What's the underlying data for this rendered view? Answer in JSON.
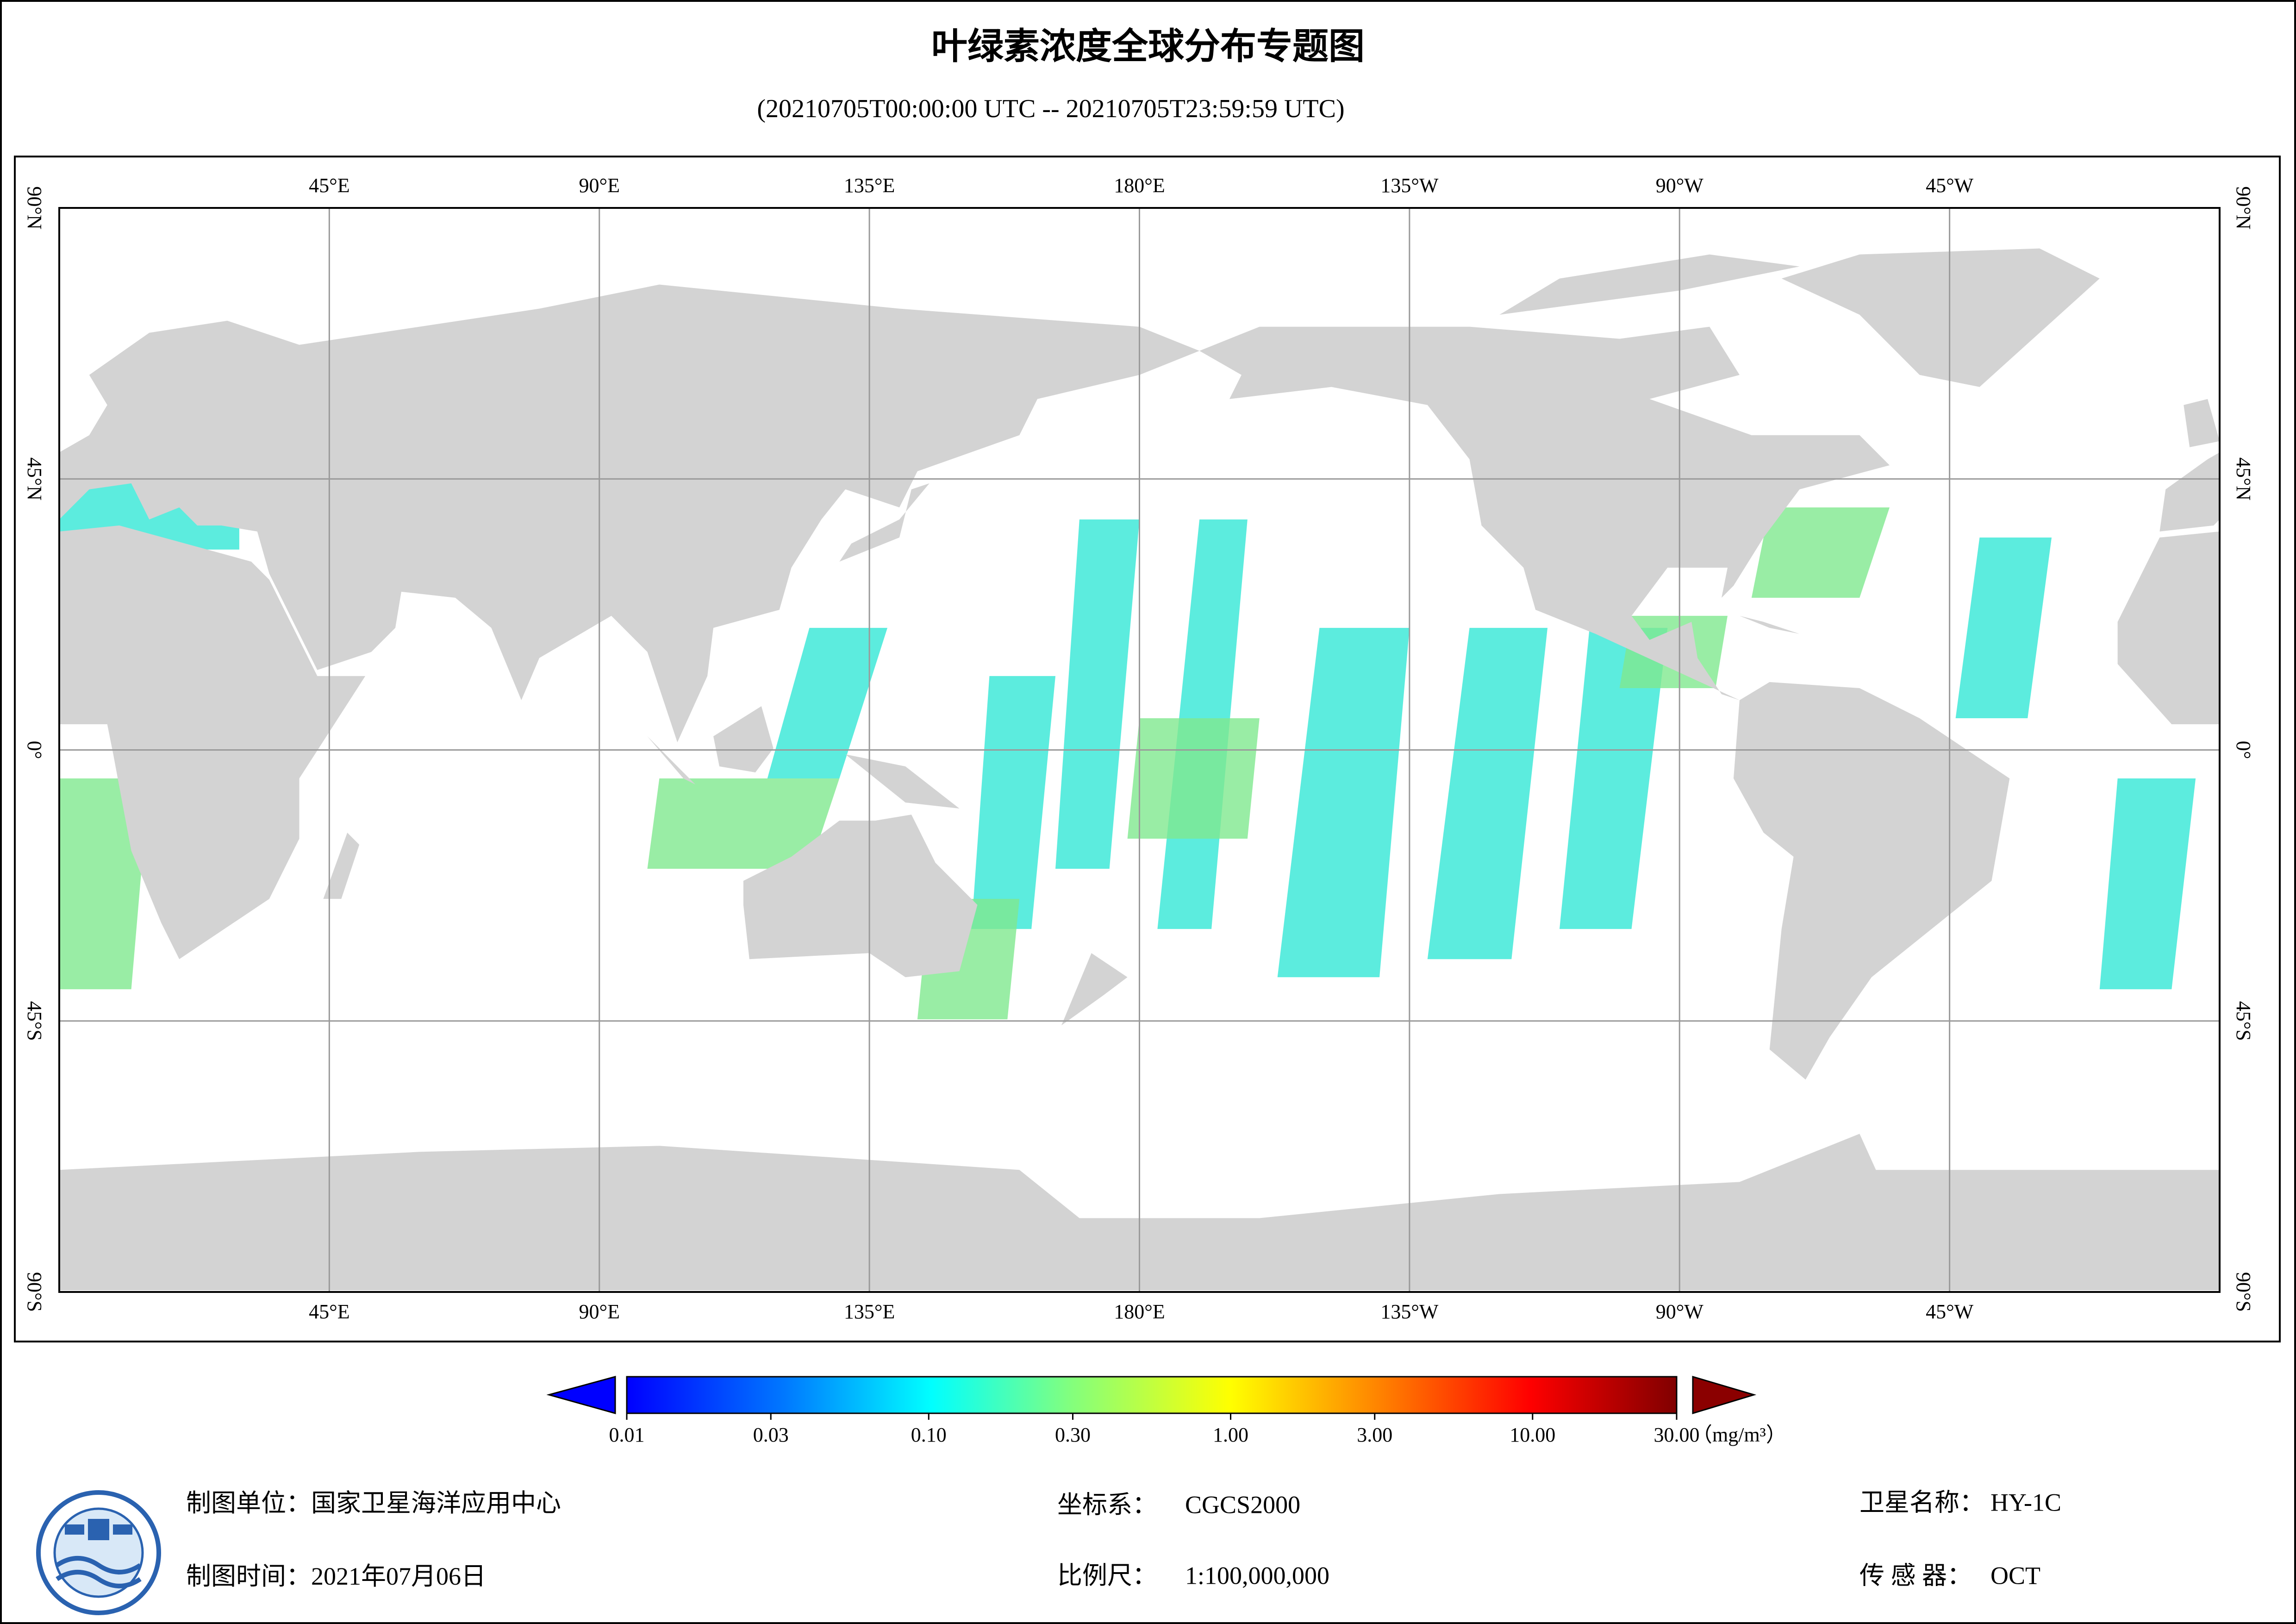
{
  "header": {
    "title": "叶绿素浓度全球分布专题图",
    "subtitle": "(20210705T00:00:00 UTC -- 20210705T23:59:59 UTC)"
  },
  "map": {
    "grid": true,
    "lon_ticks": [
      {
        "value": 45,
        "label": "45°E"
      },
      {
        "value": 90,
        "label": "90°E"
      },
      {
        "value": 135,
        "label": "135°E"
      },
      {
        "value": 180,
        "label": "180°E"
      },
      {
        "value": -135,
        "label": "135°W"
      },
      {
        "value": -90,
        "label": "90°W"
      },
      {
        "value": -45,
        "label": "45°W"
      }
    ],
    "lat_ticks": [
      {
        "value": 90,
        "label": "90°N"
      },
      {
        "value": 45,
        "label": "45°N"
      },
      {
        "value": 0,
        "label": "0°"
      },
      {
        "value": -45,
        "label": "45°S"
      },
      {
        "value": -90,
        "label": "90°S"
      }
    ]
  },
  "colorbar": {
    "scale": "log",
    "lim": [
      0.01,
      30
    ],
    "ticks": [
      0.01,
      0.03,
      {
        "value": 0.1,
        "label": "0.10"
      },
      {
        "value": 0.3,
        "label": "0.30"
      },
      {
        "value": 1,
        "label": "1.00"
      },
      {
        "value": 3,
        "label": "3.00"
      },
      {
        "value": 10,
        "label": "10.00"
      },
      {
        "value": 30,
        "label": "30.00"
      }
    ],
    "unit": "（mg/m³）"
  },
  "footer": {
    "producer": {
      "label": "制图单位：",
      "value": "国家卫星海洋应用中心"
    },
    "date": {
      "label": "制图时间：",
      "value": "2021年07月06日"
    },
    "crs": {
      "label": "坐标系：",
      "value": "CGCS2000"
    },
    "scale": {
      "label": "比例尺：",
      "value": "1:100,000,000"
    },
    "satellite": {
      "label": "卫星名称：",
      "value": "HY-1C"
    },
    "sensor": {
      "label": "传 感 器：",
      "value": "OCT"
    }
  }
}
